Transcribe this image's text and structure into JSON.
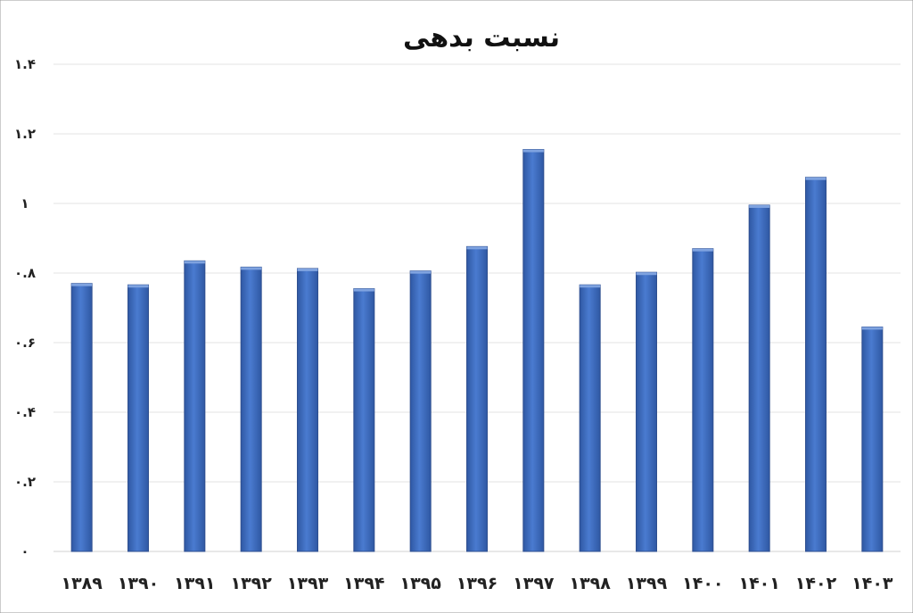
{
  "chart_data": {
    "type": "bar",
    "title": "نسبت بدهی",
    "xlabel": "",
    "ylabel": "",
    "categories": [
      "۱۳۸۹",
      "۱۳۹۰",
      "۱۳۹۱",
      "۱۳۹۲",
      "۱۳۹۳",
      "۱۳۹۴",
      "۱۳۹۵",
      "۱۳۹۶",
      "۱۳۹۷",
      "۱۳۹۸",
      "۱۳۹۹",
      "۱۴۰۰",
      "۱۴۰۱",
      "۱۴۰۲",
      "۱۴۰۳"
    ],
    "values": [
      0.77,
      0.766,
      0.835,
      0.817,
      0.813,
      0.755,
      0.806,
      0.876,
      1.155,
      0.766,
      0.802,
      0.87,
      0.995,
      1.075,
      0.645
    ],
    "ylim": [
      0,
      1.4
    ],
    "yticks": [
      0,
      0.2,
      0.4,
      0.6,
      0.8,
      1,
      1.2,
      1.4
    ],
    "ytick_labels": [
      "۰",
      "۰.۲",
      "۰.۴",
      "۰.۶",
      "۰.۸",
      "۱",
      "۱.۲",
      "۱.۴"
    ],
    "grid": true,
    "legend": "none",
    "colors": {
      "bar": "#4472c4",
      "bar_edge": "#2f4f8f",
      "grid": "#e3e3e3"
    }
  }
}
